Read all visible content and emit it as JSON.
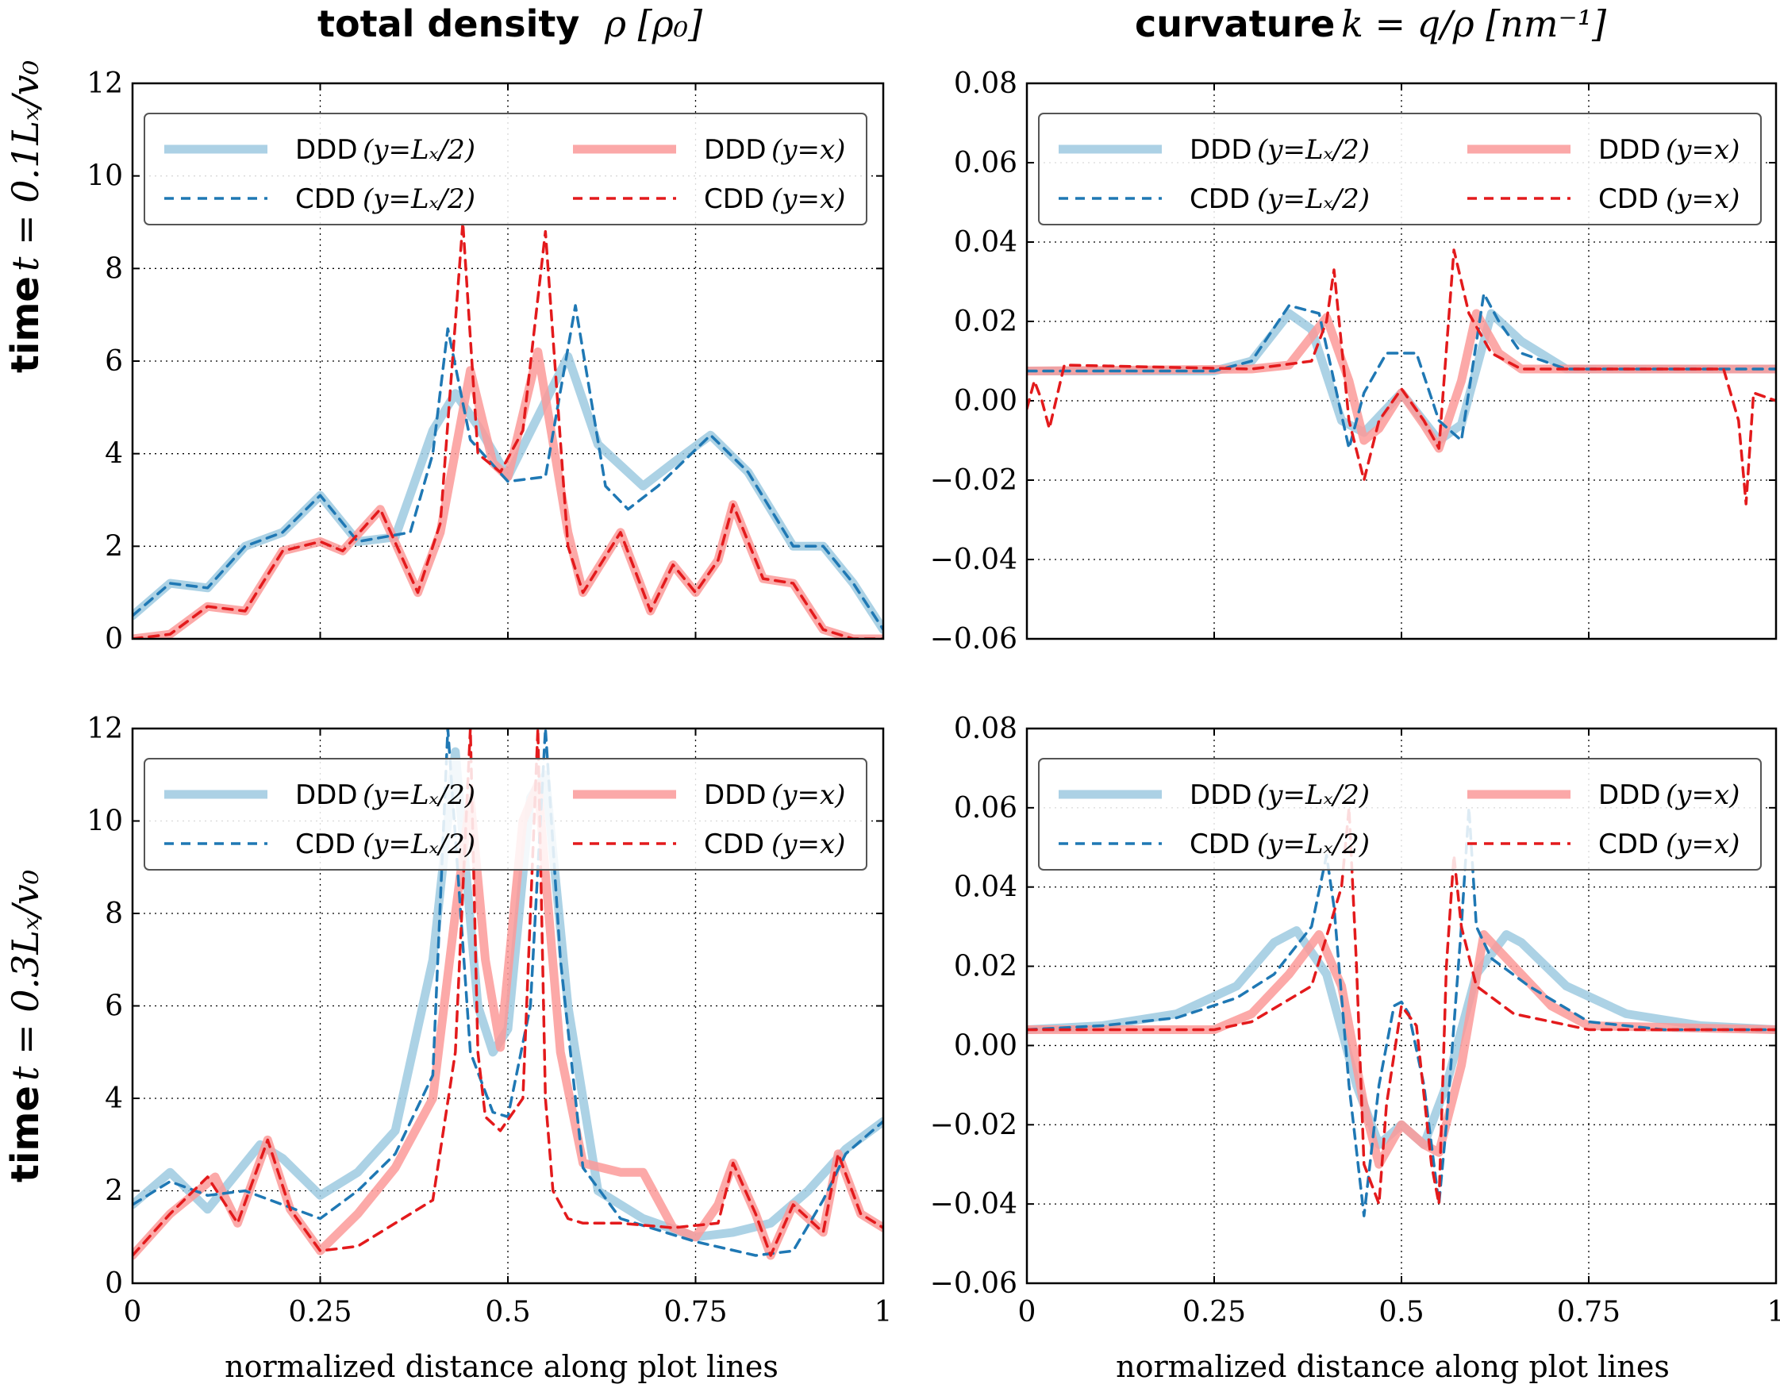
{
  "column_titles": [
    {
      "bold": "total density",
      "math": "ρ [ρ₀]"
    },
    {
      "bold": "curvature",
      "math": "k = q/ρ [nm⁻¹]"
    }
  ],
  "row_titles": [
    {
      "bold": "time",
      "math": "t = 0.1Lₓ/v₀"
    },
    {
      "bold": "time",
      "math": "t = 0.3Lₓ/v₀"
    }
  ],
  "xlabel": "normalized distance along plot lines",
  "legend": [
    {
      "name": "DDD",
      "cond": "(y=Lₓ/2)",
      "color": "#9ecae1",
      "style": "solid"
    },
    {
      "name": "DDD",
      "cond": "(y=x)",
      "color": "#fb9a99",
      "style": "solid"
    },
    {
      "name": "CDD",
      "cond": "(y=Lₓ/2)",
      "color": "#1f78b4",
      "style": "dashed"
    },
    {
      "name": "CDD",
      "cond": "(y=x)",
      "color": "#e31a1c",
      "style": "dashed"
    }
  ],
  "chart_data": [
    {
      "type": "line",
      "title": "total density ρ [ρ₀]",
      "row": "time t = 0.1Lₓ/v₀",
      "xlabel": "",
      "xlim": [
        0,
        1
      ],
      "ylim": [
        0,
        12
      ],
      "xticks": [],
      "yticks": [
        "0",
        "2",
        "4",
        "6",
        "8",
        "10",
        "12"
      ],
      "ytick_values": [
        0,
        2,
        4,
        6,
        8,
        10,
        12
      ],
      "series": [
        {
          "name": "DDD (y=Lx/2)",
          "x": [
            0,
            0.05,
            0.1,
            0.15,
            0.2,
            0.25,
            0.3,
            0.35,
            0.4,
            0.43,
            0.46,
            0.5,
            0.54,
            0.58,
            0.62,
            0.68,
            0.72,
            0.77,
            0.82,
            0.88,
            0.92,
            0.96,
            1.0
          ],
          "y": [
            0.5,
            1.2,
            1.1,
            2.0,
            2.3,
            3.1,
            2.1,
            2.2,
            4.5,
            5.3,
            4.6,
            3.5,
            4.8,
            6.1,
            4.2,
            3.3,
            3.8,
            4.4,
            3.6,
            2.0,
            2.0,
            1.2,
            0.2
          ]
        },
        {
          "name": "DDD (y=x)",
          "x": [
            0,
            0.05,
            0.1,
            0.15,
            0.2,
            0.25,
            0.28,
            0.33,
            0.38,
            0.41,
            0.45,
            0.48,
            0.5,
            0.54,
            0.58,
            0.6,
            0.65,
            0.69,
            0.72,
            0.75,
            0.78,
            0.8,
            0.84,
            0.88,
            0.92,
            0.96,
            1.0
          ],
          "y": [
            0,
            0.1,
            0.7,
            0.6,
            1.9,
            2.1,
            1.9,
            2.8,
            1.0,
            2.3,
            5.8,
            3.8,
            3.5,
            6.2,
            2.3,
            1.0,
            2.3,
            0.6,
            1.6,
            1.0,
            1.7,
            2.9,
            1.3,
            1.2,
            0.2,
            0,
            0
          ]
        },
        {
          "name": "CDD (y=Lx/2)",
          "x": [
            0,
            0.05,
            0.1,
            0.15,
            0.2,
            0.25,
            0.3,
            0.37,
            0.4,
            0.42,
            0.45,
            0.5,
            0.55,
            0.59,
            0.63,
            0.66,
            0.7,
            0.77,
            0.82,
            0.88,
            0.92,
            0.96,
            1.0
          ],
          "y": [
            0.5,
            1.2,
            1.1,
            2.0,
            2.3,
            3.1,
            2.1,
            2.3,
            4.0,
            6.7,
            4.3,
            3.4,
            3.5,
            7.2,
            3.3,
            2.8,
            3.3,
            4.4,
            3.6,
            2.0,
            2.0,
            1.2,
            0.2
          ]
        },
        {
          "name": "CDD (y=x)",
          "x": [
            0,
            0.05,
            0.1,
            0.15,
            0.2,
            0.25,
            0.28,
            0.33,
            0.38,
            0.41,
            0.44,
            0.46,
            0.49,
            0.52,
            0.55,
            0.58,
            0.6,
            0.65,
            0.69,
            0.72,
            0.75,
            0.78,
            0.8,
            0.84,
            0.88,
            0.92,
            0.96,
            1.0
          ],
          "y": [
            0,
            0.1,
            0.7,
            0.6,
            1.9,
            2.1,
            1.9,
            2.8,
            1.0,
            2.5,
            9.0,
            4.0,
            3.6,
            4.5,
            8.8,
            2.0,
            1.0,
            2.3,
            0.6,
            1.6,
            1.0,
            1.7,
            2.9,
            1.3,
            1.2,
            0.2,
            0,
            0
          ]
        }
      ]
    },
    {
      "type": "line",
      "title": "curvature k = q/ρ [nm⁻¹]",
      "row": "time t = 0.1Lₓ/v₀",
      "xlabel": "",
      "xlim": [
        0,
        1
      ],
      "ylim": [
        -0.06,
        0.08
      ],
      "xticks": [],
      "yticks": [
        "−0.06",
        "−0.04",
        "−0.02",
        "0.00",
        "0.02",
        "0.04",
        "0.06",
        "0.08"
      ],
      "ytick_values": [
        -0.06,
        -0.04,
        -0.02,
        0,
        0.02,
        0.04,
        0.06,
        0.08
      ],
      "series": [
        {
          "name": "DDD (y=Lx/2)",
          "x": [
            0,
            0.25,
            0.3,
            0.35,
            0.38,
            0.42,
            0.45,
            0.5,
            0.55,
            0.58,
            0.62,
            0.66,
            0.72,
            0.97,
            1.0
          ],
          "y": [
            0.0075,
            0.0075,
            0.01,
            0.022,
            0.018,
            -0.005,
            -0.008,
            0.002,
            -0.01,
            -0.006,
            0.022,
            0.015,
            0.008,
            0.008,
            0.008
          ]
        },
        {
          "name": "DDD (y=x)",
          "x": [
            0,
            0.3,
            0.35,
            0.4,
            0.43,
            0.45,
            0.47,
            0.5,
            0.53,
            0.55,
            0.58,
            0.6,
            0.63,
            0.66,
            0.97,
            1.0
          ],
          "y": [
            0.0075,
            0.008,
            0.009,
            0.021,
            0.005,
            -0.01,
            -0.007,
            0.002,
            -0.006,
            -0.012,
            0.005,
            0.022,
            0.012,
            0.008,
            0.008,
            0.008
          ]
        },
        {
          "name": "CDD (y=Lx/2)",
          "x": [
            0,
            0.25,
            0.3,
            0.35,
            0.39,
            0.41,
            0.43,
            0.45,
            0.48,
            0.52,
            0.55,
            0.58,
            0.61,
            0.63,
            0.66,
            0.72,
            0.97,
            1.0
          ],
          "y": [
            0.0075,
            0.0075,
            0.01,
            0.024,
            0.022,
            0.005,
            -0.012,
            0.002,
            0.012,
            0.012,
            -0.005,
            -0.01,
            0.027,
            0.02,
            0.012,
            0.008,
            0.008,
            0.008
          ]
        },
        {
          "name": "CDD (y=x)",
          "x": [
            0,
            0.01,
            0.02,
            0.03,
            0.05,
            0.3,
            0.38,
            0.4,
            0.41,
            0.43,
            0.45,
            0.47,
            0.5,
            0.53,
            0.55,
            0.57,
            0.59,
            0.62,
            0.66,
            0.9,
            0.93,
            0.95,
            0.96,
            0.97,
            1.0
          ],
          "y": [
            -0.002,
            0.005,
            0.0,
            -0.007,
            0.009,
            0.008,
            0.01,
            0.02,
            0.033,
            -0.005,
            -0.02,
            -0.005,
            0.003,
            -0.005,
            -0.012,
            0.038,
            0.022,
            0.012,
            0.008,
            0.008,
            0.008,
            -0.005,
            -0.026,
            0.002,
            0.0
          ]
        }
      ]
    },
    {
      "type": "line",
      "title": "total density ρ [ρ₀]",
      "row": "time t = 0.3Lₓ/v₀",
      "xlabel": "normalized distance along plot lines",
      "xlim": [
        0,
        1
      ],
      "ylim": [
        0,
        12
      ],
      "xticks": [
        "0",
        "0.25",
        "0.5",
        "0.75",
        "1"
      ],
      "xtick_values": [
        0,
        0.25,
        0.5,
        0.75,
        1
      ],
      "yticks": [
        "0",
        "2",
        "4",
        "6",
        "8",
        "10",
        "12"
      ],
      "ytick_values": [
        0,
        2,
        4,
        6,
        8,
        10,
        12
      ],
      "series": [
        {
          "name": "DDD (y=Lx/2)",
          "x": [
            0,
            0.05,
            0.1,
            0.17,
            0.2,
            0.25,
            0.3,
            0.35,
            0.4,
            0.43,
            0.46,
            0.48,
            0.5,
            0.53,
            0.55,
            0.58,
            0.62,
            0.68,
            0.75,
            0.8,
            0.85,
            0.9,
            0.95,
            1.0
          ],
          "y": [
            1.7,
            2.4,
            1.6,
            3.0,
            2.7,
            1.9,
            2.4,
            3.3,
            7.0,
            11.5,
            6.0,
            5.0,
            5.5,
            10.5,
            11.0,
            6.0,
            2.0,
            1.4,
            1.0,
            1.1,
            1.3,
            2.0,
            2.9,
            3.5
          ]
        },
        {
          "name": "DDD (y=x)",
          "x": [
            0,
            0.05,
            0.11,
            0.14,
            0.18,
            0.21,
            0.25,
            0.3,
            0.35,
            0.4,
            0.43,
            0.45,
            0.47,
            0.49,
            0.52,
            0.54,
            0.57,
            0.6,
            0.65,
            0.68,
            0.72,
            0.75,
            0.78,
            0.8,
            0.83,
            0.85,
            0.88,
            0.92,
            0.94,
            0.97,
            1.0
          ],
          "y": [
            0.6,
            1.5,
            2.3,
            1.3,
            3.1,
            1.6,
            0.7,
            1.5,
            2.5,
            4.0,
            8.0,
            10.5,
            7.0,
            5.1,
            10.0,
            10.8,
            5.0,
            2.6,
            2.4,
            2.4,
            1.2,
            1.0,
            1.7,
            2.6,
            1.5,
            0.6,
            1.7,
            1.1,
            2.8,
            1.5,
            1.2
          ]
        },
        {
          "name": "CDD (y=Lx/2)",
          "x": [
            0,
            0.05,
            0.1,
            0.15,
            0.2,
            0.25,
            0.3,
            0.35,
            0.4,
            0.42,
            0.45,
            0.48,
            0.5,
            0.53,
            0.55,
            0.57,
            0.6,
            0.65,
            0.75,
            0.83,
            0.88,
            0.92,
            0.95,
            1.0
          ],
          "y": [
            1.7,
            2.2,
            1.9,
            2.0,
            1.7,
            1.4,
            2.0,
            2.8,
            4.5,
            12.0,
            5.0,
            3.7,
            3.6,
            6.0,
            12.0,
            7.0,
            2.5,
            1.4,
            0.9,
            0.6,
            0.7,
            1.8,
            2.8,
            3.5
          ]
        },
        {
          "name": "CDD (y=x)",
          "x": [
            0,
            0.05,
            0.1,
            0.14,
            0.18,
            0.21,
            0.25,
            0.3,
            0.35,
            0.4,
            0.43,
            0.45,
            0.46,
            0.47,
            0.49,
            0.52,
            0.54,
            0.55,
            0.56,
            0.58,
            0.6,
            0.65,
            0.72,
            0.78,
            0.8,
            0.83,
            0.85,
            0.88,
            0.92,
            0.94,
            0.97,
            1.0
          ],
          "y": [
            0.6,
            1.5,
            2.3,
            1.3,
            3.1,
            1.6,
            0.7,
            0.8,
            1.3,
            1.8,
            5.0,
            12.0,
            5.0,
            3.6,
            3.3,
            4.0,
            12.0,
            4.0,
            2.0,
            1.4,
            1.3,
            1.3,
            1.2,
            1.3,
            2.6,
            1.5,
            0.6,
            1.7,
            1.1,
            2.8,
            1.5,
            1.2
          ]
        }
      ]
    },
    {
      "type": "line",
      "title": "curvature k = q/ρ [nm⁻¹]",
      "row": "time t = 0.3Lₓ/v₀",
      "xlabel": "normalized distance along plot lines",
      "xlim": [
        0,
        1
      ],
      "ylim": [
        -0.06,
        0.08
      ],
      "xticks": [
        "0",
        "0.25",
        "0.5",
        "0.75",
        "1"
      ],
      "xtick_values": [
        0,
        0.25,
        0.5,
        0.75,
        1
      ],
      "yticks": [
        "−0.06",
        "−0.04",
        "−0.02",
        "0.00",
        "0.02",
        "0.04",
        "0.06",
        "0.08"
      ],
      "ytick_values": [
        -0.06,
        -0.04,
        -0.02,
        0,
        0.02,
        0.04,
        0.06,
        0.08
      ],
      "series": [
        {
          "name": "DDD (y=Lx/2)",
          "x": [
            0,
            0.1,
            0.2,
            0.28,
            0.33,
            0.36,
            0.4,
            0.44,
            0.47,
            0.5,
            0.53,
            0.56,
            0.6,
            0.64,
            0.66,
            0.72,
            0.8,
            0.9,
            1.0
          ],
          "y": [
            0.004,
            0.005,
            0.008,
            0.015,
            0.026,
            0.029,
            0.018,
            -0.01,
            -0.025,
            -0.02,
            -0.025,
            -0.01,
            0.018,
            0.028,
            0.026,
            0.015,
            0.008,
            0.005,
            0.004
          ]
        },
        {
          "name": "DDD (y=x)",
          "x": [
            0,
            0.25,
            0.3,
            0.35,
            0.39,
            0.42,
            0.45,
            0.47,
            0.5,
            0.53,
            0.55,
            0.58,
            0.61,
            0.65,
            0.7,
            0.75,
            1.0
          ],
          "y": [
            0.004,
            0.004,
            0.008,
            0.018,
            0.028,
            0.015,
            -0.015,
            -0.03,
            -0.02,
            -0.025,
            -0.027,
            -0.005,
            0.028,
            0.02,
            0.01,
            0.005,
            0.004
          ]
        },
        {
          "name": "CDD (y=Lx/2)",
          "x": [
            0,
            0.1,
            0.2,
            0.28,
            0.33,
            0.38,
            0.4,
            0.41,
            0.43,
            0.45,
            0.47,
            0.49,
            0.5,
            0.51,
            0.53,
            0.55,
            0.56,
            0.58,
            0.59,
            0.6,
            0.62,
            0.67,
            0.75,
            0.85,
            1.0
          ],
          "y": [
            0.004,
            0.005,
            0.007,
            0.012,
            0.018,
            0.03,
            0.048,
            0.035,
            -0.01,
            -0.043,
            -0.01,
            0.01,
            0.011,
            0.008,
            -0.01,
            -0.04,
            -0.02,
            0.03,
            0.06,
            0.03,
            0.022,
            0.015,
            0.006,
            0.004,
            0.004
          ]
        },
        {
          "name": "CDD (y=x)",
          "x": [
            0,
            0.25,
            0.3,
            0.38,
            0.42,
            0.43,
            0.44,
            0.45,
            0.47,
            0.48,
            0.5,
            0.52,
            0.54,
            0.55,
            0.56,
            0.57,
            0.58,
            0.6,
            0.65,
            0.75,
            1.0
          ],
          "y": [
            0.004,
            0.004,
            0.006,
            0.015,
            0.04,
            0.06,
            0.02,
            -0.03,
            -0.04,
            -0.015,
            0.01,
            0.005,
            -0.03,
            -0.04,
            0.02,
            0.048,
            0.03,
            0.015,
            0.008,
            0.004,
            0.004
          ]
        }
      ]
    }
  ]
}
